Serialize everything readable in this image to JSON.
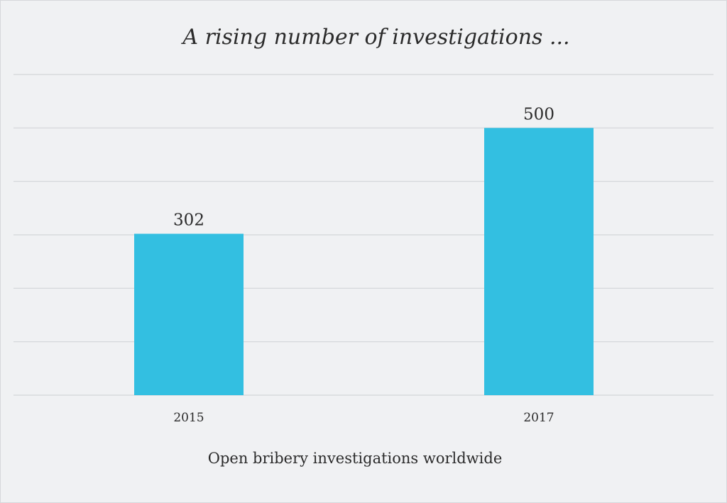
{
  "chart_data": {
    "type": "bar",
    "title": "A rising number of investigations ...",
    "xlabel": "Open bribery investigations worldwide",
    "ylabel": "",
    "categories": [
      "2015",
      "2017"
    ],
    "values": [
      302,
      500
    ],
    "data_labels": [
      "302",
      "500"
    ],
    "ylim": [
      0,
      600
    ],
    "grid": true,
    "gridline_step": 100,
    "bar_color": "#33bfe1",
    "legend": "none"
  }
}
